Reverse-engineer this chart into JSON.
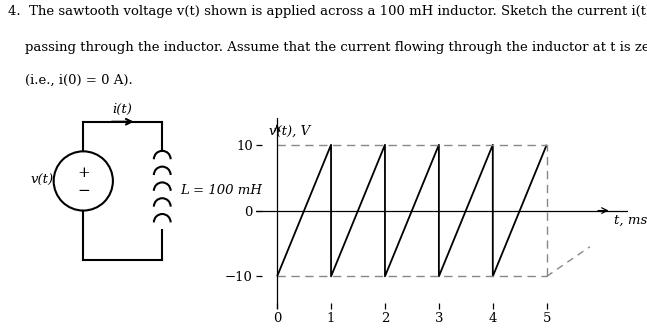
{
  "line1": "4.  The sawtooth voltage v(t) shown is applied across a 100 mH inductor. Sketch the current i(t)",
  "line2": "    passing through the inductor. Assume that the current flowing through the inductor at t is zero",
  "line3": "    (i.e., i(0) = 0 A).",
  "ylabel": "v(t), V",
  "xlabel": "t, ms",
  "yticks": [
    -10,
    0,
    10
  ],
  "xticks": [
    0,
    1,
    2,
    3,
    4,
    5
  ],
  "ylim": [
    -15,
    14
  ],
  "xlim": [
    -0.4,
    6.5
  ],
  "sawtooth_x": [
    0,
    1,
    1,
    2,
    2,
    3,
    3,
    4,
    4,
    5
  ],
  "sawtooth_y": [
    -10,
    10,
    -10,
    10,
    -10,
    10,
    -10,
    10,
    -10,
    10
  ],
  "dashed_color": "#888888",
  "signal_color": "#000000",
  "bg_color": "#ffffff",
  "font_size": 9.5
}
